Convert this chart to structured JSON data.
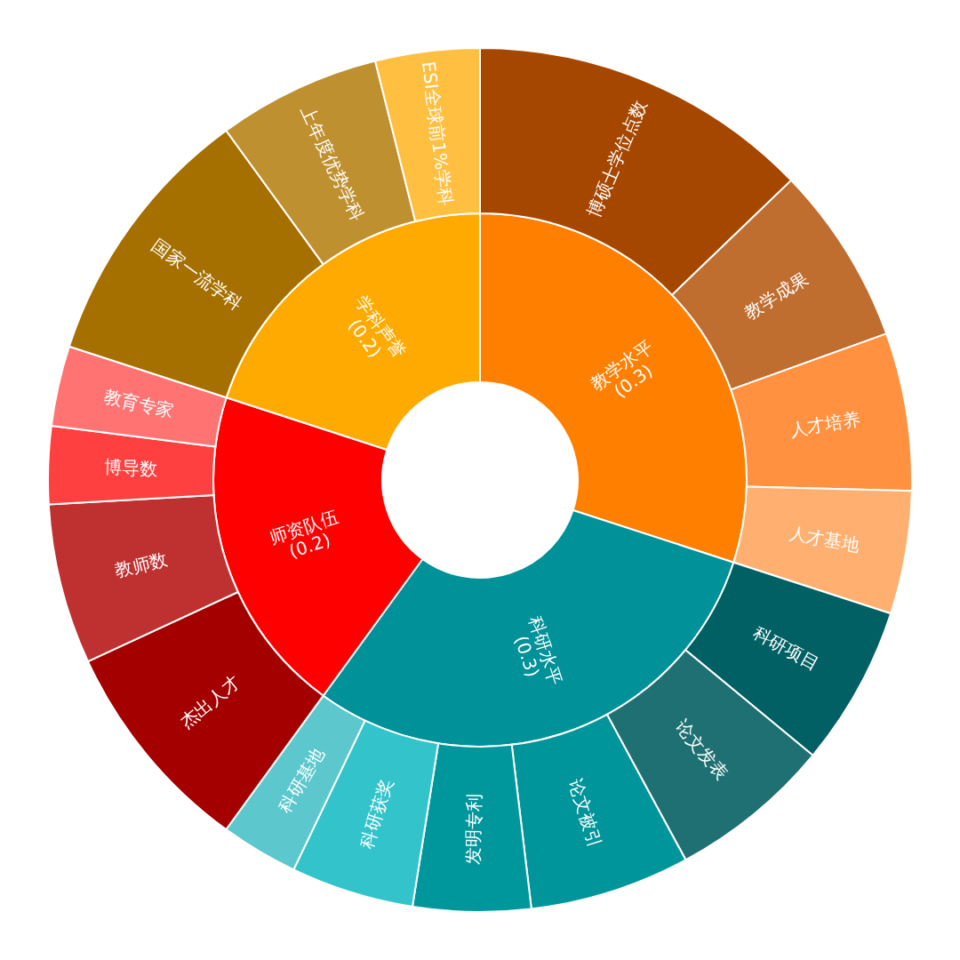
{
  "chart_data": [
    {
      "type": "donut",
      "categories": [
        "教学水平\n(0.3)",
        "科研水平\n(0.3)",
        "师资队伍\n(0.2)",
        "学科声誉\n(0.2)"
      ],
      "values": [
        30,
        30,
        20,
        20
      ],
      "colors": [
        "#ff7f00",
        "#009199",
        "#ff0000",
        "#ffaa00"
      ]
    },
    {
      "type": "donut",
      "categories": [
        "博硕士学位点数",
        "教学成果",
        "人才培养",
        "人才基地",
        "科研项目",
        "论文发表",
        "论文被引",
        "发明专利",
        "科研获奖",
        "科研基地",
        "杰出人才",
        "教师数",
        "博导数",
        "教育专家",
        "国家一流学科",
        "上年度优势学科",
        "ESI全球前1%学科"
      ],
      "values": [
        12.8,
        6.7,
        5.9,
        4.6,
        6.0,
        6.1,
        6.0,
        4.4,
        4.6,
        2.9,
        8.1,
        6.0,
        2.9,
        3.0,
        10.0,
        6.1,
        3.9
      ],
      "colors": [
        "#a64700",
        "#c06d30",
        "#ff9140",
        "#ffb070",
        "#006064",
        "#1f7073",
        "#00959a",
        "#00979c",
        "#33c4cb",
        "#5cc8cd",
        "#a50000",
        "#bf3030",
        "#ff4040",
        "#ff7373",
        "#a67000",
        "#bf9030",
        "#ffbf40"
      ]
    }
  ]
}
